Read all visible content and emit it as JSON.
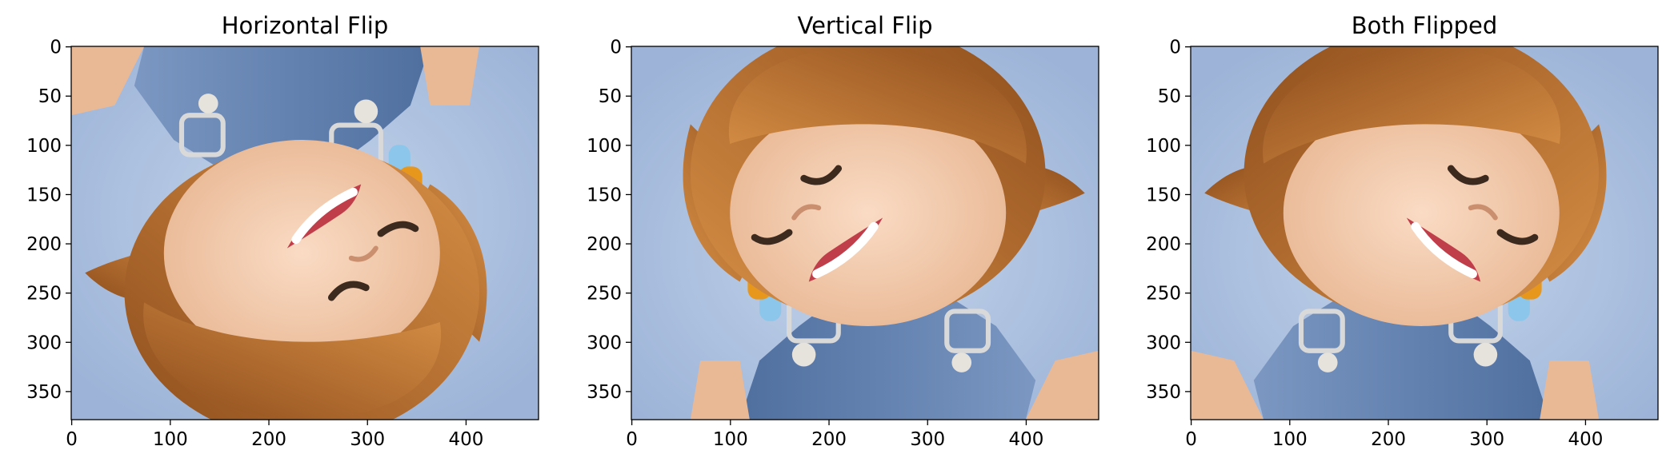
{
  "panels": [
    {
      "id": "horizontal",
      "title": "Horizontal Flip",
      "flip_x": true,
      "flip_y": false
    },
    {
      "id": "vertical",
      "title": "Vertical Flip",
      "flip_x": false,
      "flip_y": true
    },
    {
      "id": "both",
      "title": "Both Flipped",
      "flip_x": true,
      "flip_y": true
    }
  ],
  "axes": {
    "x_ticks": [
      "0",
      "100",
      "200",
      "300",
      "400"
    ],
    "y_ticks": [
      "0",
      "50",
      "100",
      "150",
      "200",
      "250",
      "300",
      "350"
    ]
  },
  "colors": {
    "background": "#a8bedd",
    "skin": "#f1c9ae",
    "hair": "#b86e2c",
    "denim": "#5f7fae",
    "hair_tie_red": "#d81f2a",
    "hair_tie_orange": "#e7981c",
    "hair_tie_blue": "#8cc6ea"
  }
}
